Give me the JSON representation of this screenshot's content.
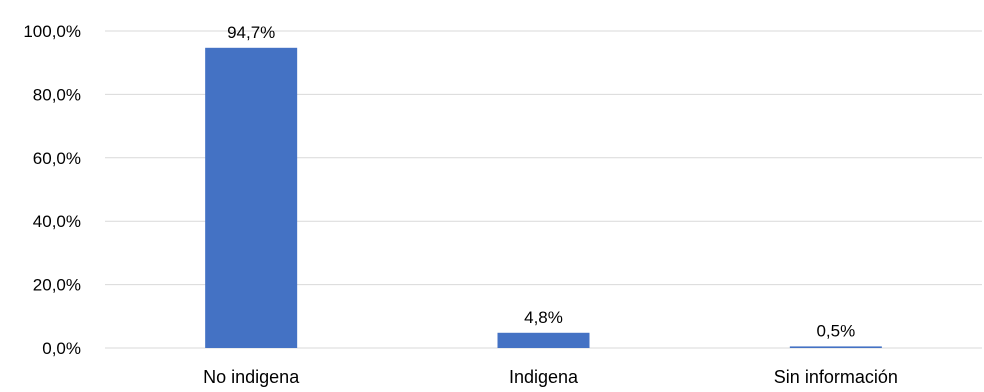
{
  "chart_data": {
    "type": "bar",
    "categories": [
      "No indigena",
      "Indigena",
      "Sin información"
    ],
    "values": [
      94.7,
      4.8,
      0.5
    ],
    "data_labels": [
      "94,7%",
      "4,8%",
      "0,5%"
    ],
    "y_ticks": [
      {
        "value": 0,
        "label": "0,0%"
      },
      {
        "value": 20,
        "label": "20,0%"
      },
      {
        "value": 40,
        "label": "40,0%"
      },
      {
        "value": 60,
        "label": "60,0%"
      },
      {
        "value": 80,
        "label": "80,0%"
      },
      {
        "value": 100,
        "label": "100,0%"
      }
    ],
    "ylim": [
      0,
      100
    ],
    "grid": true,
    "legend": "none",
    "bar_color": "#4472C4",
    "grid_color": "#d9d9d9"
  }
}
